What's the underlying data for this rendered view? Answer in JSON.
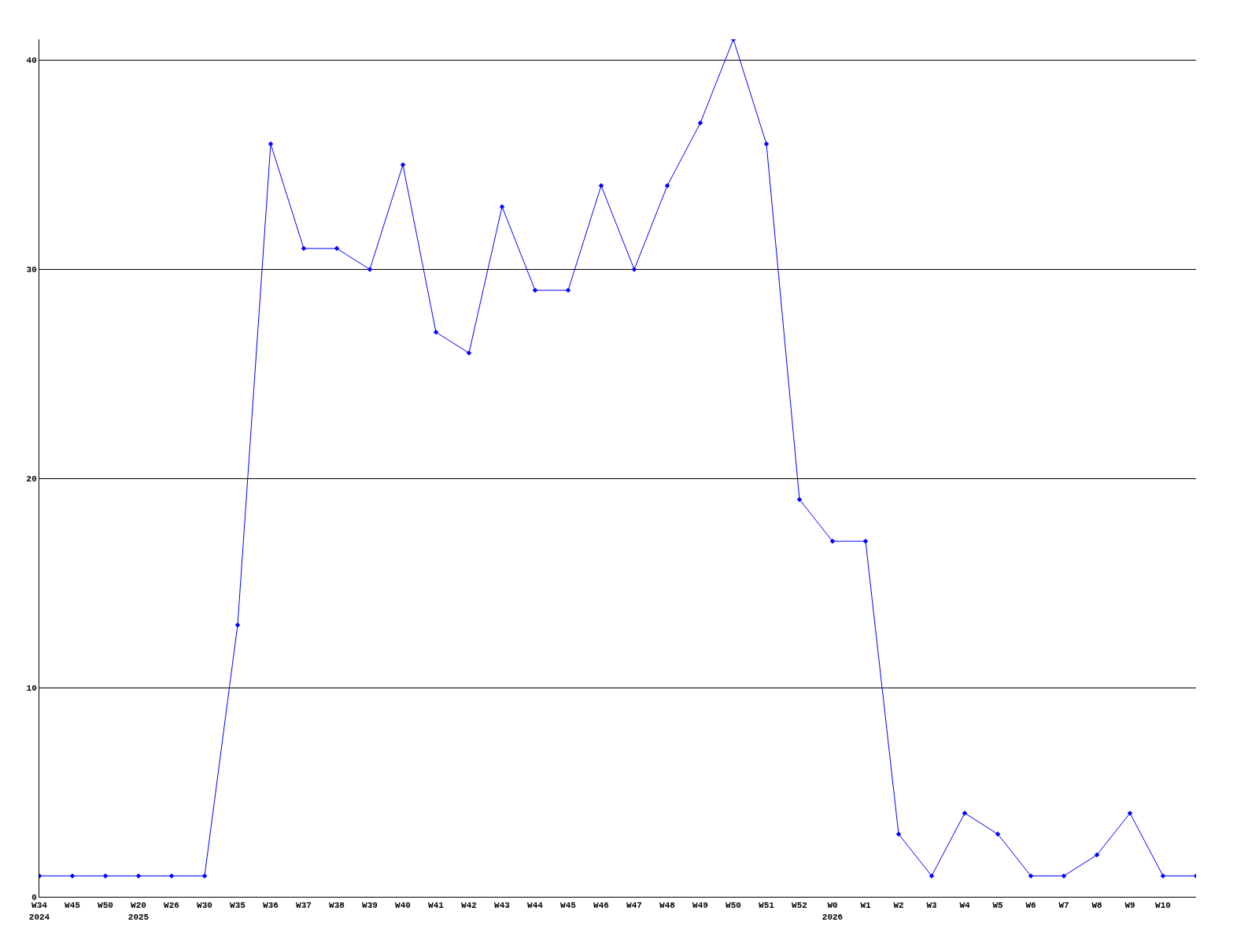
{
  "chart_data": {
    "type": "line",
    "categories": [
      "W34\n2024",
      "W45",
      "W50",
      "W20\n2025",
      "W26",
      "W30",
      "W35",
      "W36",
      "W37",
      "W38",
      "W39",
      "W40",
      "W41",
      "W42",
      "W43",
      "W44",
      "W45",
      "W46",
      "W47",
      "W48",
      "W49",
      "W50",
      "W51",
      "W52",
      "W0\n2026",
      "W1",
      "W2",
      "W3",
      "W4",
      "W5",
      "W6",
      "W7",
      "W8",
      "W9",
      "W10",
      null
    ],
    "series": [
      {
        "color": "#0000ff",
        "values": [
          1,
          1,
          1,
          1,
          1,
          1,
          13,
          36,
          31,
          31,
          30,
          35,
          27,
          26,
          33,
          29,
          29,
          34,
          30,
          34,
          37,
          41,
          36,
          19,
          17,
          17,
          3,
          1,
          4,
          3,
          1,
          1,
          2,
          4,
          1,
          1
        ]
      }
    ],
    "ylim": [
      0,
      41
    ],
    "yticks": [
      0,
      10,
      20,
      30,
      40
    ],
    "grid": "y",
    "marker": "diamond",
    "line_style": "solid"
  }
}
